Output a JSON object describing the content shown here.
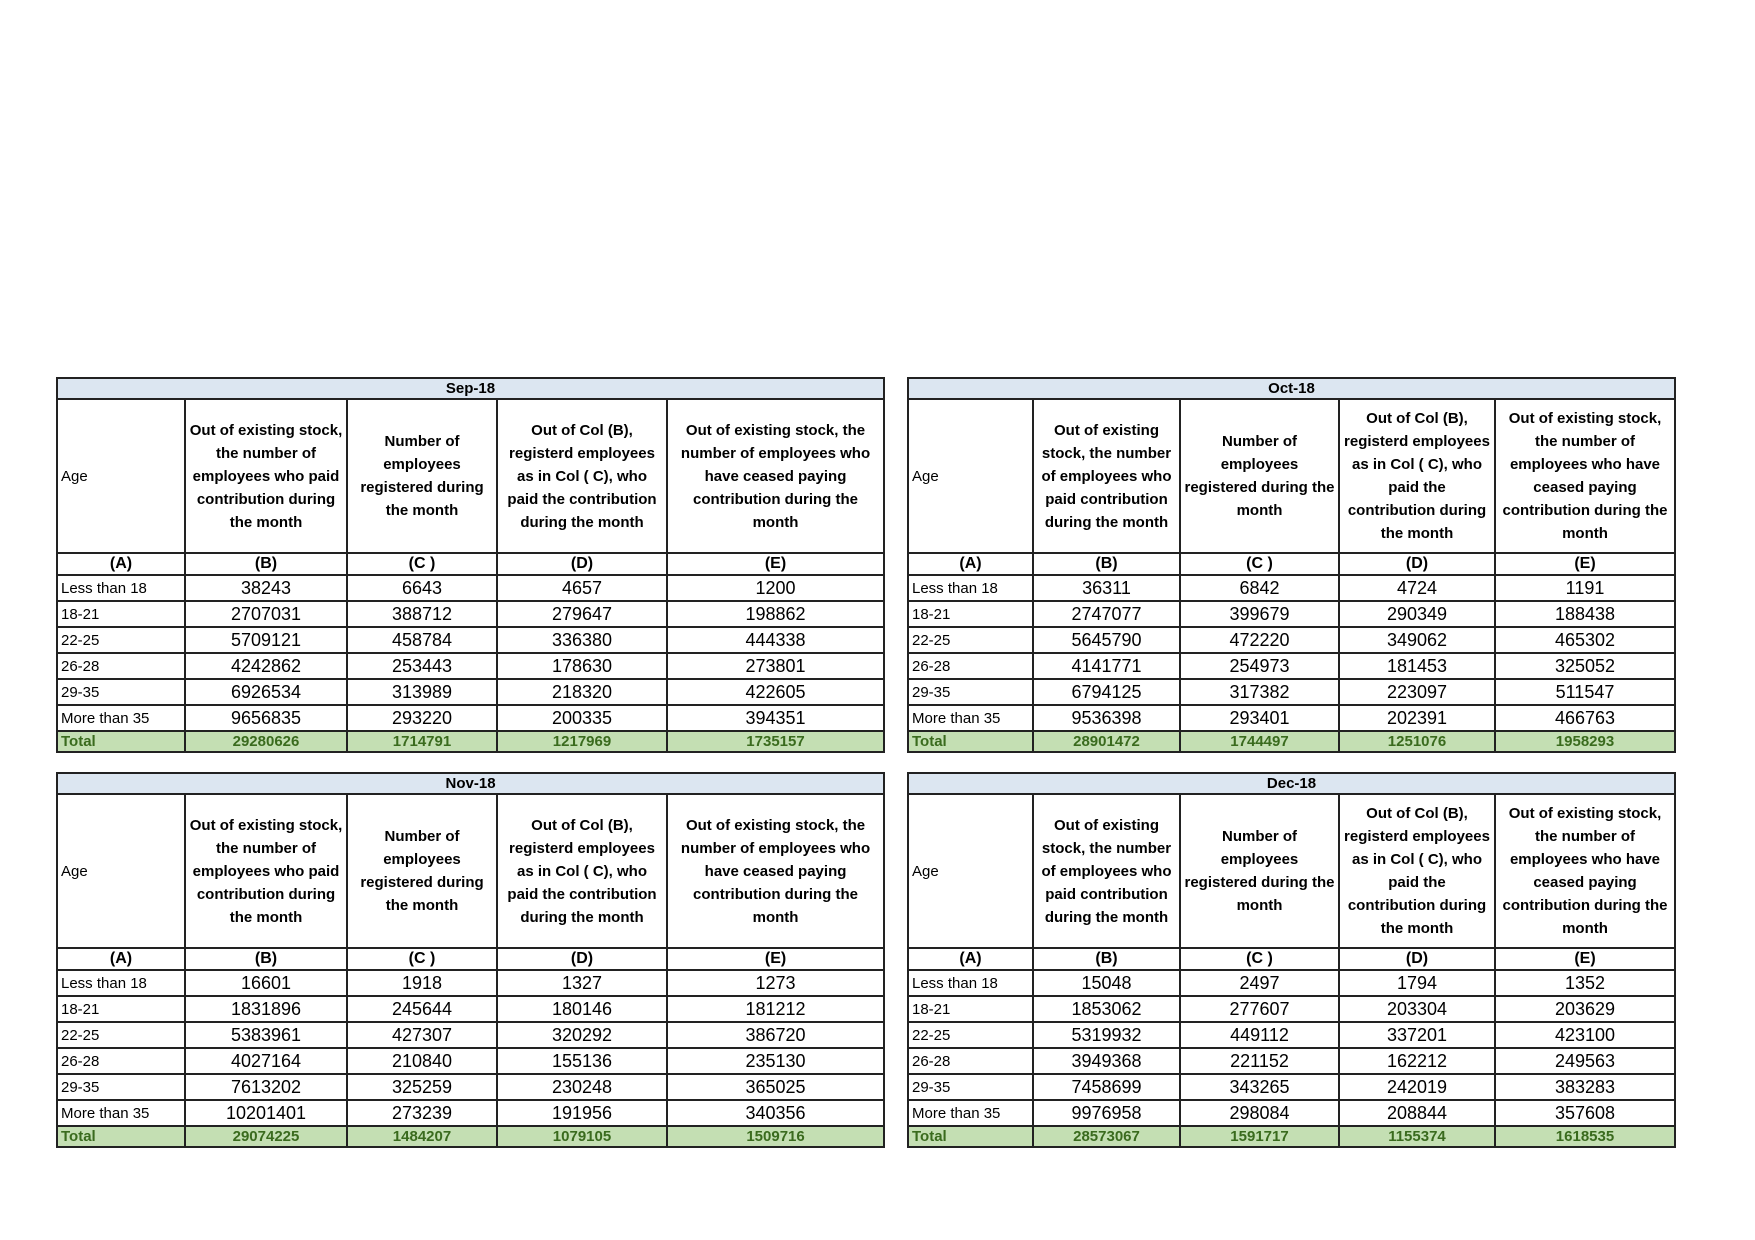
{
  "tables": [
    {
      "title": "Sep-18",
      "headers": [
        "Age",
        "Out of existing stock, the number of employees who paid contribution during the month",
        "Number of employees registered during the month",
        "Out of Col (B), registerd employees as in Col ( C), who paid the contribution during the month",
        "Out of existing stock, the number of  employees who have ceased paying contribution during the month"
      ],
      "letters": [
        "(A)",
        "(B)",
        "(C )",
        "(D)",
        "(E)"
      ],
      "rows": [
        [
          "Less than 18",
          38243,
          6643,
          4657,
          1200
        ],
        [
          "18-21",
          2707031,
          388712,
          279647,
          198862
        ],
        [
          "22-25",
          5709121,
          458784,
          336380,
          444338
        ],
        [
          "26-28",
          4242862,
          253443,
          178630,
          273801
        ],
        [
          "29-35",
          6926534,
          313989,
          218320,
          422605
        ],
        [
          "More than 35",
          9656835,
          293220,
          200335,
          394351
        ]
      ],
      "total": [
        "Total",
        29280626,
        1714791,
        1217969,
        1735157
      ]
    },
    {
      "title": "Oct-18",
      "headers": [
        "Age",
        "Out of existing stock, the number of employees who paid contribution during the month",
        "Number of employees registered during the month",
        "Out of Col (B), registerd employees as in Col ( C), who paid the contribution during the month",
        "Out of existing stock, the number of  employees who have ceased paying contribution during the month"
      ],
      "letters": [
        "(A)",
        "(B)",
        "(C )",
        "(D)",
        "(E)"
      ],
      "rows": [
        [
          "Less than 18",
          36311,
          6842,
          4724,
          1191
        ],
        [
          "18-21",
          2747077,
          399679,
          290349,
          188438
        ],
        [
          "22-25",
          5645790,
          472220,
          349062,
          465302
        ],
        [
          "26-28",
          4141771,
          254973,
          181453,
          325052
        ],
        [
          "29-35",
          6794125,
          317382,
          223097,
          511547
        ],
        [
          "More than 35",
          9536398,
          293401,
          202391,
          466763
        ]
      ],
      "total": [
        "Total",
        28901472,
        1744497,
        1251076,
        1958293
      ]
    },
    {
      "title": "Nov-18",
      "headers": [
        "Age",
        "Out of existing stock, the number of employees who paid contribution during the month",
        "Number of employees registered during the month",
        "Out of Col (B), registerd employees as in Col ( C), who paid the contribution during the month",
        "Out of existing stock, the number of  employees who have ceased paying contribution during the month"
      ],
      "letters": [
        "(A)",
        "(B)",
        "(C )",
        "(D)",
        "(E)"
      ],
      "rows": [
        [
          "Less than 18",
          16601,
          1918,
          1327,
          1273
        ],
        [
          "18-21",
          1831896,
          245644,
          180146,
          181212
        ],
        [
          "22-25",
          5383961,
          427307,
          320292,
          386720
        ],
        [
          "26-28",
          4027164,
          210840,
          155136,
          235130
        ],
        [
          "29-35",
          7613202,
          325259,
          230248,
          365025
        ],
        [
          "More than 35",
          10201401,
          273239,
          191956,
          340356
        ]
      ],
      "total": [
        "Total",
        29074225,
        1484207,
        1079105,
        1509716
      ]
    },
    {
      "title": "Dec-18",
      "headers": [
        "Age",
        "Out of existing stock, the number of employees who paid contribution during the month",
        "Number of employees registered during the month",
        "Out of Col (B), registerd employees as in Col ( C), who paid the contribution during the month",
        "Out of existing stock, the number of  employees who have ceased paying contribution during the month"
      ],
      "letters": [
        "(A)",
        "(B)",
        "(C )",
        "(D)",
        "(E)"
      ],
      "rows": [
        [
          "Less than 18",
          15048,
          2497,
          1794,
          1352
        ],
        [
          "18-21",
          1853062,
          277607,
          203304,
          203629
        ],
        [
          "22-25",
          5319932,
          449112,
          337201,
          423100
        ],
        [
          "26-28",
          3949368,
          221152,
          162212,
          249563
        ],
        [
          "29-35",
          7458699,
          343265,
          242019,
          383283
        ],
        [
          "More than 35",
          9976958,
          298084,
          208844,
          357608
        ]
      ],
      "total": [
        "Total",
        28573067,
        1591717,
        1155374,
        1618535
      ]
    }
  ]
}
